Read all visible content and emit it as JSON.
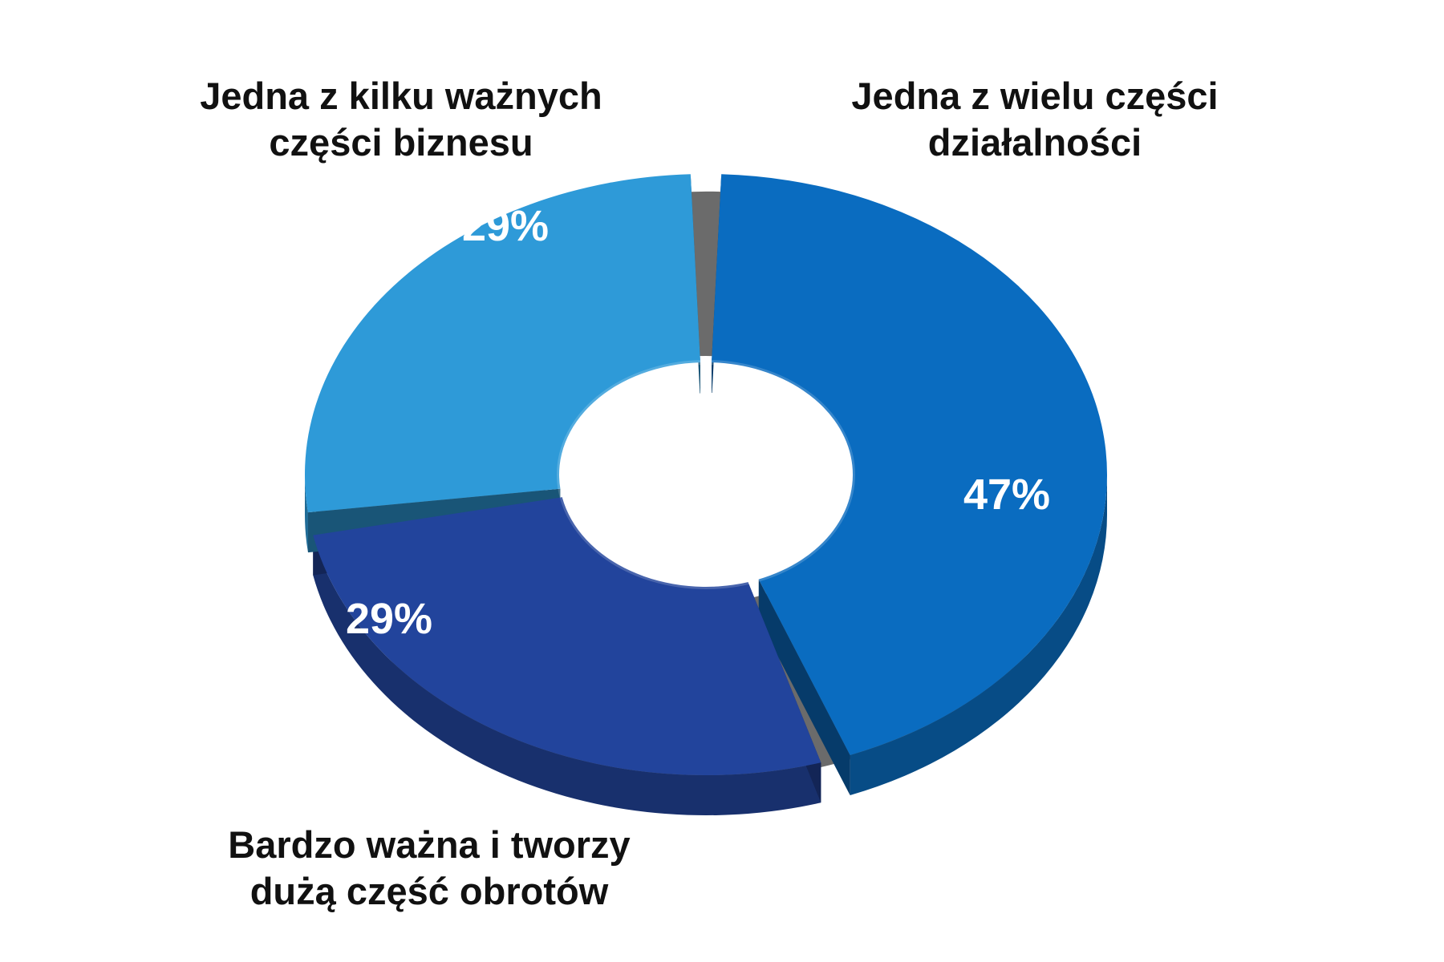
{
  "chart_data": {
    "type": "pie",
    "variant": "3d-donut",
    "title": "",
    "categories": [
      "Jedna z wielu części działalności",
      "Bardzo ważna i tworzy dużą część obrotów",
      "Jedna z kilku ważnych części biznesu"
    ],
    "label_lines": [
      [
        "Jedna z wielu części",
        "działalności"
      ],
      [
        "Bardzo ważna i tworzy",
        "dużą część obrotów"
      ],
      [
        "Jedna z kilku ważnych",
        "części biznesu"
      ]
    ],
    "values": [
      47,
      29,
      29
    ],
    "value_labels": [
      "47%",
      "29%",
      "29%"
    ],
    "unit": "%",
    "colors": [
      "#0a6cc0",
      "#22449c",
      "#2e9ad8"
    ],
    "legend": "none"
  }
}
